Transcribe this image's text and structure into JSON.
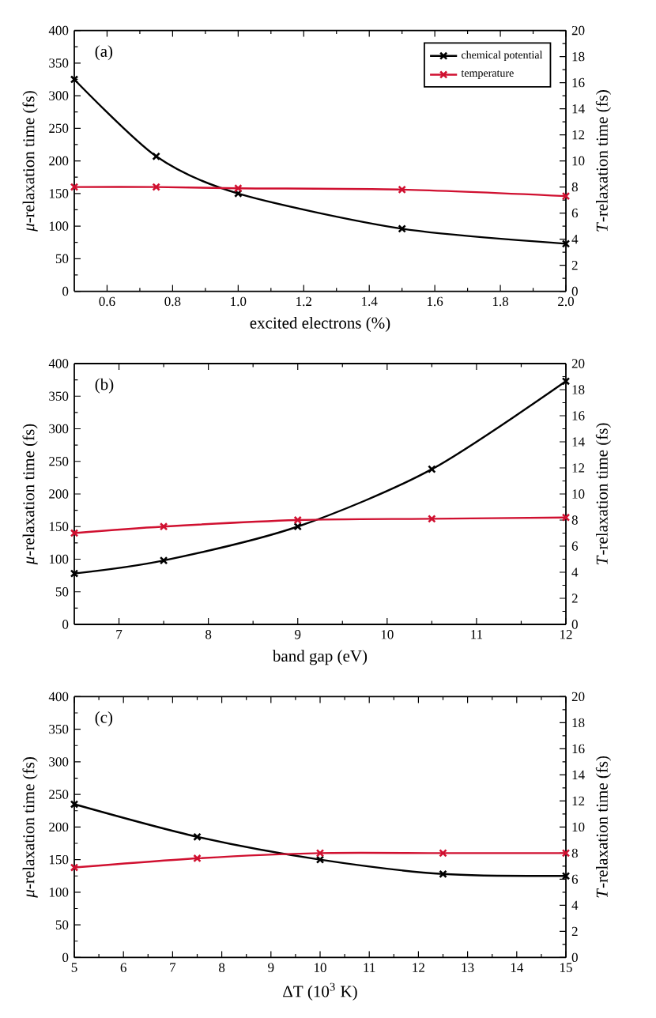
{
  "chart_data": [
    {
      "type": "line",
      "x": [
        0.5,
        0.75,
        1.0,
        1.5,
        2.0
      ],
      "xlabel": "excited electrons (%)",
      "ylabel": "*μ*-relaxation time (fs)",
      "y2label": "*T*-relaxation time (fs)",
      "annotations": [
        "(a)"
      ],
      "xlim": [
        0.5,
        2.0
      ],
      "xticks": [
        0.6,
        0.8,
        {
          "value": 1,
          "label": "1.0"
        },
        1.2,
        1.4,
        1.6,
        1.8,
        {
          "value": 2,
          "label": "2.0"
        }
      ],
      "ylim": [
        0,
        400
      ],
      "yticks": [
        0,
        50,
        100,
        150,
        200,
        250,
        300,
        350,
        400
      ],
      "y2lim": [
        0,
        20
      ],
      "y2ticks": [
        0,
        2,
        4,
        6,
        8,
        10,
        12,
        14,
        16,
        18,
        20
      ],
      "marker": "cross",
      "line_style": "solid",
      "legend": "top right",
      "series": [
        {
          "name": "chemical potential",
          "color": "#000000",
          "values": [
            325,
            207,
            150,
            96,
            73
          ]
        },
        {
          "name": "temperature",
          "color": "#d01030",
          "axis": "y2",
          "values": [
            8.0,
            8.0,
            7.9,
            7.8,
            7.3
          ]
        }
      ]
    },
    {
      "type": "line",
      "x": [
        6.5,
        7.5,
        9.0,
        10.5,
        12.0
      ],
      "xlabel": "band gap (eV)",
      "ylabel": "*μ*-relaxation time (fs)",
      "y2label": "*T*-relaxation time (fs)",
      "annotations": [
        "(b)"
      ],
      "xlim": [
        6.5,
        12
      ],
      "xticks": [
        7,
        8,
        9,
        10,
        11,
        12
      ],
      "ylim": [
        0,
        400
      ],
      "yticks": [
        0,
        50,
        100,
        150,
        200,
        250,
        300,
        350,
        400
      ],
      "y2lim": [
        0,
        20
      ],
      "y2ticks": [
        0,
        2,
        4,
        6,
        8,
        10,
        12,
        14,
        16,
        18,
        20
      ],
      "marker": "cross",
      "line_style": "solid",
      "series": [
        {
          "color": "#000000",
          "values": [
            78,
            98,
            150,
            238,
            373
          ]
        },
        {
          "color": "#d01030",
          "axis": "y2",
          "values": [
            7.0,
            7.5,
            8.0,
            8.1,
            8.2
          ]
        }
      ]
    },
    {
      "type": "line",
      "x": [
        5,
        7.5,
        10,
        12.5,
        15
      ],
      "xlabel": "ΔT (10$^{3}$ K)",
      "ylabel": "*μ*-relaxation time (fs)",
      "y2label": "*T*-relaxation time (fs)",
      "annotations": [
        "(c)"
      ],
      "xlim": [
        5,
        15
      ],
      "xticks": [
        5,
        6,
        7,
        8,
        9,
        10,
        11,
        12,
        13,
        14,
        15
      ],
      "ylim": [
        0,
        400
      ],
      "yticks": [
        0,
        50,
        100,
        150,
        200,
        250,
        300,
        350,
        400
      ],
      "y2lim": [
        0,
        20
      ],
      "y2ticks": [
        0,
        2,
        4,
        6,
        8,
        10,
        12,
        14,
        16,
        18,
        20
      ],
      "marker": "cross",
      "line_style": "solid",
      "series": [
        {
          "color": "#000000",
          "values": [
            235,
            185,
            150,
            128,
            125
          ]
        },
        {
          "color": "#d01030",
          "axis": "y2",
          "values": [
            6.9,
            7.6,
            8.0,
            8.0,
            8.0
          ]
        }
      ]
    }
  ]
}
